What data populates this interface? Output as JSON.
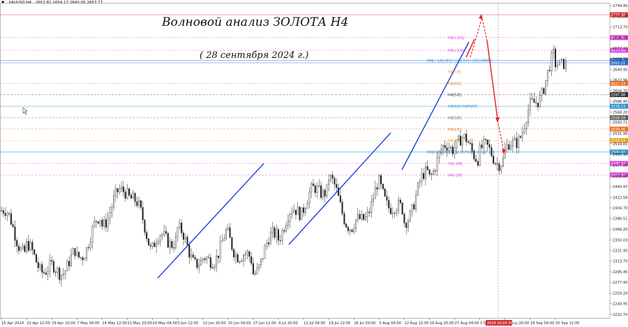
{
  "header": {
    "symbol_marker": "▼",
    "symbol": "XAUUSD,H4",
    "ohlc": "2651.82 2659.17 2643.05 2657.77"
  },
  "title": "Волновой анализ ЗОЛОТА H4",
  "subtitle": "( 28 сентября 2024 г.)",
  "chart_data": {
    "type": "candlestick",
    "y_ticks": [
      "2749.95",
      "2731.28",
      "2713.70",
      "2695.31",
      "2677.33",
      "2658.75",
      "2640.95",
      "2622.96",
      "2604.70",
      "2586.45",
      "2568.20",
      "2550.71",
      "2531.95",
      "2514.01",
      "2495.95",
      "2477.20",
      "2458.97",
      "2440.97",
      "2422.56",
      "2404.70",
      "2386.51",
      "2368.20",
      "2350.03",
      "2331.95",
      "2313.70",
      "2295.45",
      "2277.45",
      "2259.20",
      "2240.95",
      "2222.70"
    ],
    "x_ticks": [
      "15 Apr 2024",
      "22 Apr 12:00",
      "29 Apr 20:00",
      "7 May 04:00",
      "14 May 12:00",
      "21 May 20:00",
      "29 May 04:00",
      "5 Jun 12:00",
      "12 Jun 20:00",
      "20 Jun 04:00",
      "27 Jun 12:00",
      "4 Jul 20:00",
      "12 Jul 04:00",
      "19 Jul 12:00",
      "26 Jul 20:00",
      "5 Aug 04:00",
      "12 Aug 12:00",
      "19 Aug 20:00",
      "27 Aug 04:00",
      "3 Sep 12:00",
      "10 Sep 20:00",
      "18 Sep 04:00",
      "25 Sep 12:00"
    ],
    "current_time_label": "2024.10.04 20:00",
    "price_tags": [
      {
        "value": "2734.38",
        "color": "#e03030"
      },
      {
        "value": "2695.31",
        "color": "#e040e0"
      },
      {
        "value": "2673.56",
        "color": "#e040e0"
      },
      {
        "value": "2656.25",
        "color": "#2a6fc9"
      },
      {
        "value": "2652.21",
        "color": "#2a6fc9"
      },
      {
        "value": "2617.19",
        "color": "#f07020"
      },
      {
        "value": "2597.88",
        "color": "#333333"
      },
      {
        "value": "2578.13",
        "color": "#2a8fd0"
      },
      {
        "value": "2558.59",
        "color": "#606060"
      },
      {
        "value": "2539.06",
        "color": "#f07020"
      },
      {
        "value": "2519.53",
        "color": "#e8a020"
      },
      {
        "value": "2500.00",
        "color": "#2a8fd0"
      },
      {
        "value": "2480.47",
        "color": "#e040e0"
      },
      {
        "value": "2460.94",
        "color": "#e040e0"
      }
    ],
    "levels": [
      {
        "label": "H4[+2/8]",
        "color": "#e040e0"
      },
      {
        "label": "H4[+1/8]",
        "color": "#e040e0"
      },
      {
        "label": "MN[+1/8] W1[+1/8] D1[+3/8] H4RES",
        "color": "#2a8fd0"
      },
      {
        "label": "H4[7/8]",
        "color": "#e8a020"
      },
      {
        "label": "H4[6/8]",
        "color": "#f07020"
      },
      {
        "label": "H4[5/8]",
        "color": "#333333"
      },
      {
        "label": "H4[4/8] H4PIVOT",
        "color": "#2a8fd0"
      },
      {
        "label": "H4[3/8]",
        "color": "#606060"
      },
      {
        "label": "H4[2/8]",
        "color": "#f07020"
      },
      {
        "label": "H4[1/8]",
        "color": "#e8a020"
      },
      {
        "label": "MN[RES] W1[RES] D1PIVOT H4SUP",
        "color": "#2a8fd0"
      },
      {
        "label": "H4[-1/8]",
        "color": "#e040e0"
      },
      {
        "label": "H4[-2/8]",
        "color": "#e040e0"
      }
    ],
    "key_points": [
      {
        "date": "15 Apr 2024",
        "price": 2400
      },
      {
        "date": "22 Apr 12:00",
        "price": 2330
      },
      {
        "date": "29 Apr 20:00",
        "price": 2295
      },
      {
        "date": "7 May 04:00",
        "price": 2320
      },
      {
        "date": "14 May 12:00",
        "price": 2385
      },
      {
        "date": "21 May 20:00",
        "price": 2440
      },
      {
        "date": "29 May 04:00",
        "price": 2340
      },
      {
        "date": "5 Jun 12:00",
        "price": 2360
      },
      {
        "date": "12 Jun 20:00",
        "price": 2305
      },
      {
        "date": "20 Jun 04:00",
        "price": 2355
      },
      {
        "date": "27 Jun 12:00",
        "price": 2300
      },
      {
        "date": "4 Jul 20:00",
        "price": 2365
      },
      {
        "date": "12 Jul 04:00",
        "price": 2410
      },
      {
        "date": "19 Jul 12:00",
        "price": 2450
      },
      {
        "date": "26 Jul 20:00",
        "price": 2365
      },
      {
        "date": "5 Aug 04:00",
        "price": 2440
      },
      {
        "date": "12 Aug 12:00",
        "price": 2385
      },
      {
        "date": "19 Aug 20:00",
        "price": 2470
      },
      {
        "date": "27 Aug 04:00",
        "price": 2518
      },
      {
        "date": "3 Sep 12:00",
        "price": 2500
      },
      {
        "date": "10 Sep 20:00",
        "price": 2490
      },
      {
        "date": "18 Sep 04:00",
        "price": 2570
      },
      {
        "date": "25 Sep 12:00",
        "price": 2660
      }
    ],
    "colors": {
      "up": "#1f1f1f",
      "trendline": "#1f3fd8",
      "forecast": "#e02a2a",
      "grid": "#e6e6e6"
    }
  }
}
